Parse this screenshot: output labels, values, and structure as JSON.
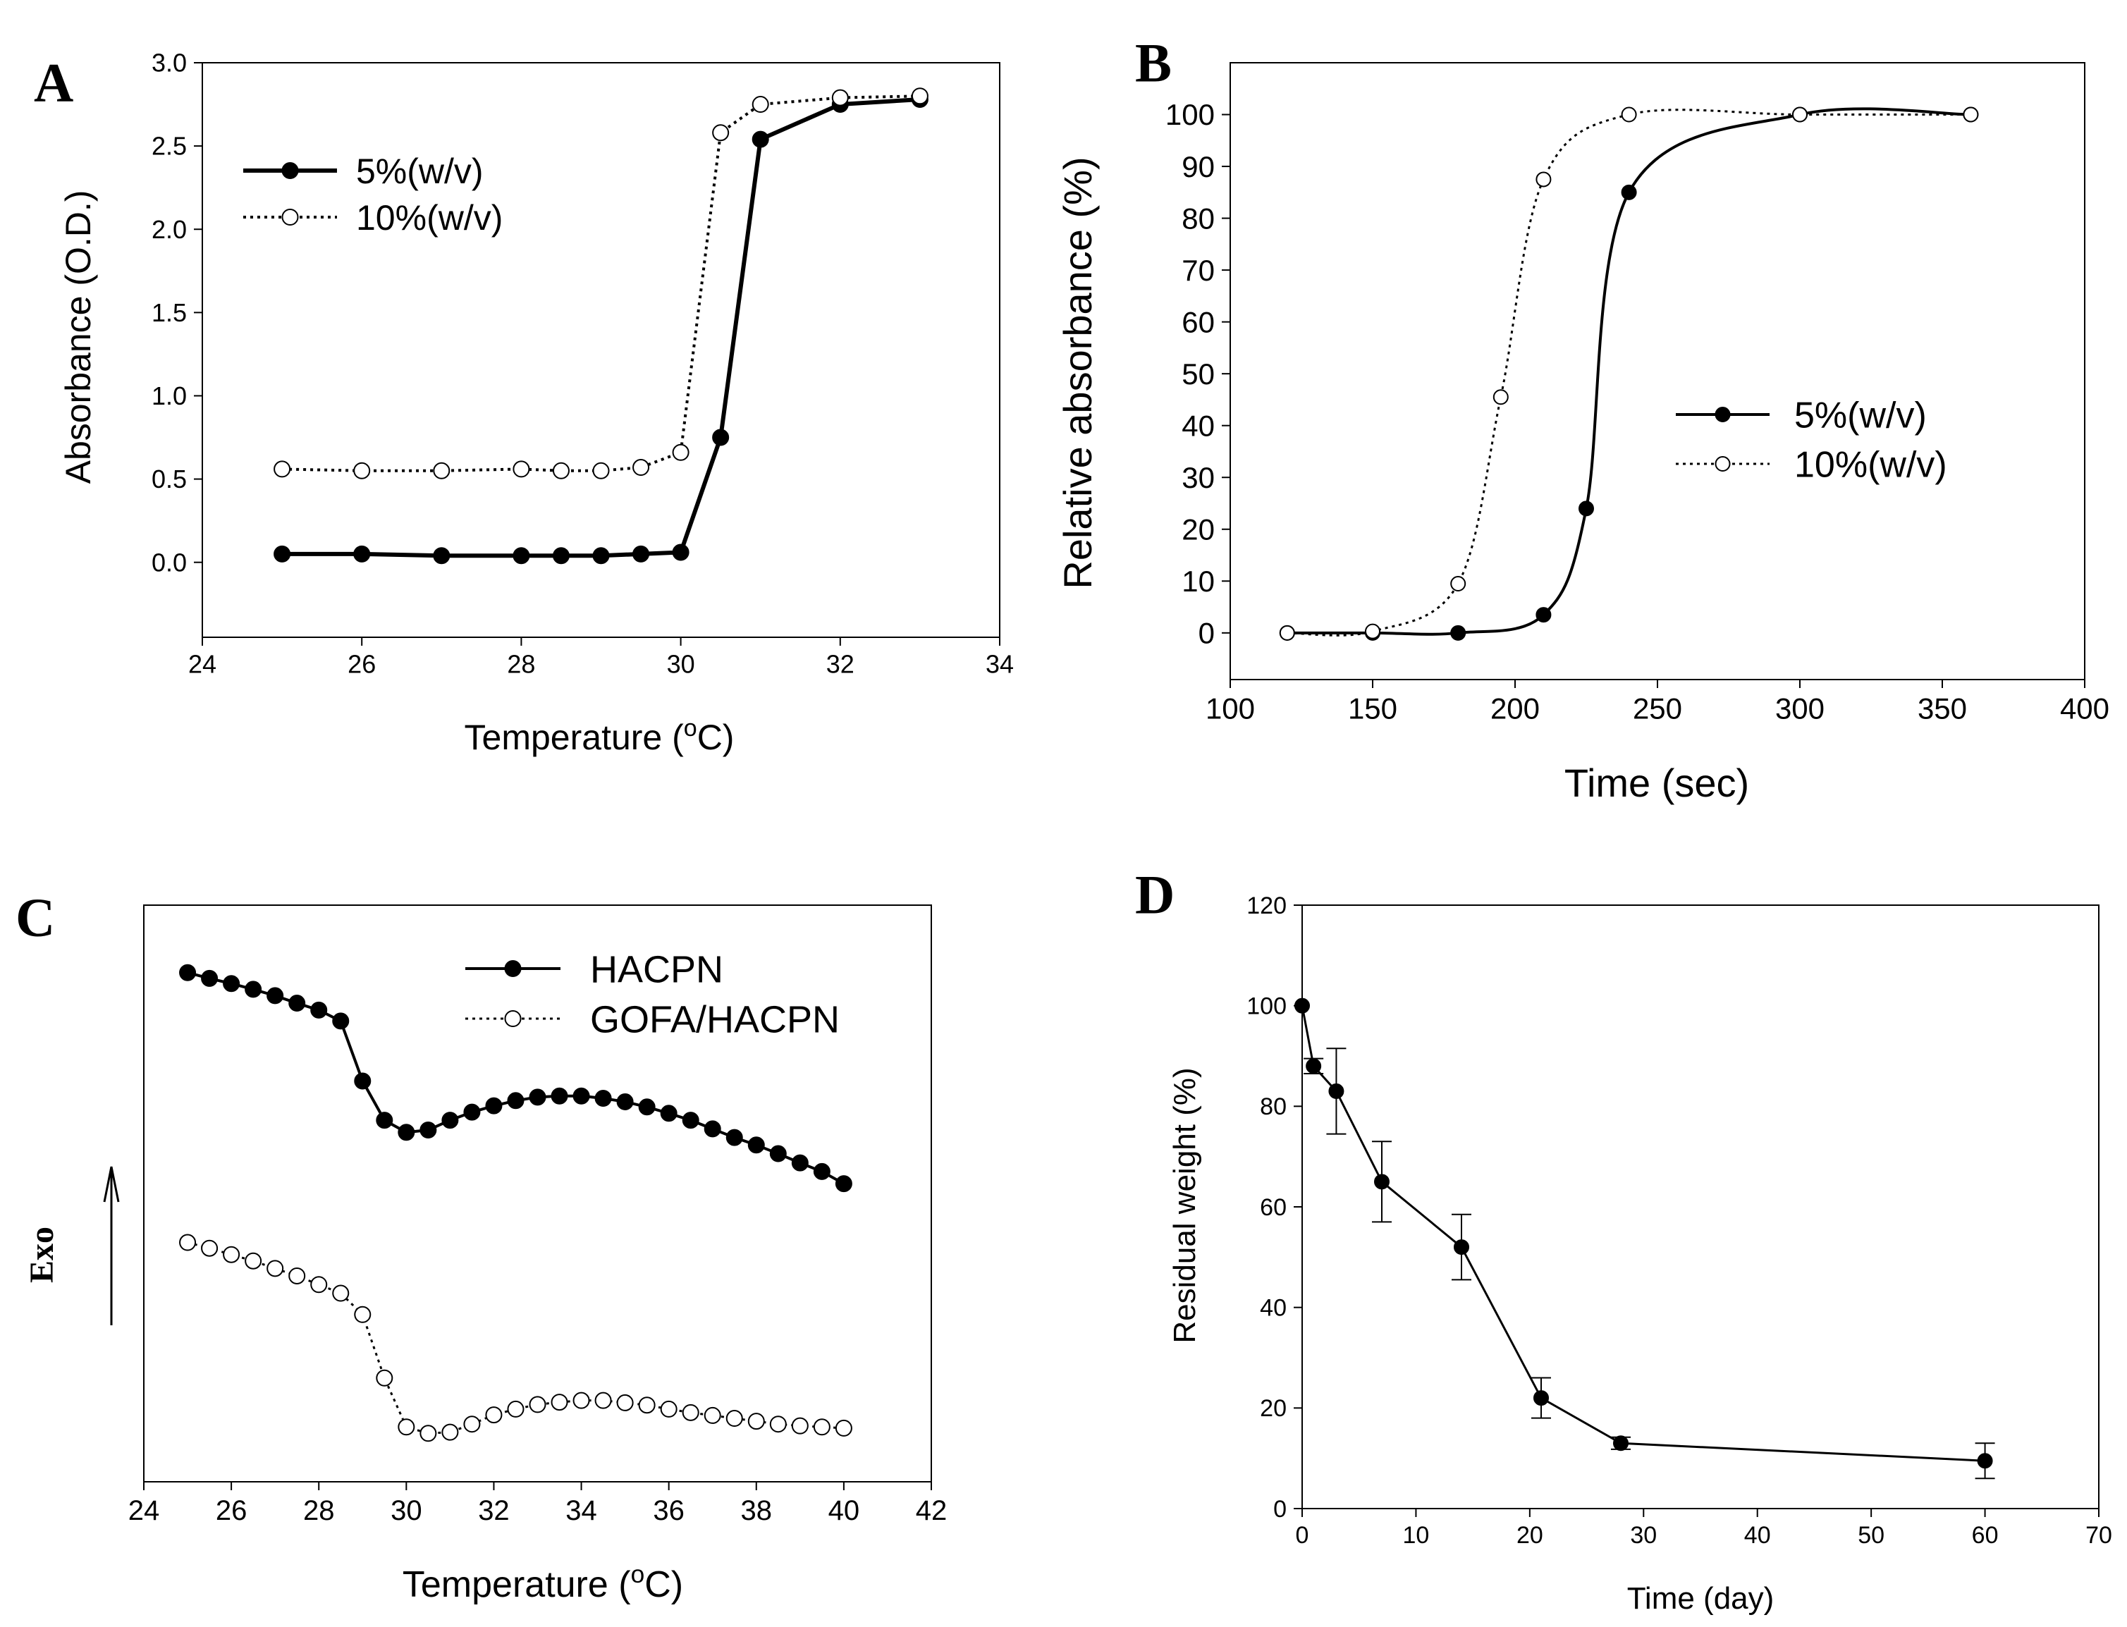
{
  "chart_data": [
    {
      "panel": "A",
      "type": "line",
      "title": "",
      "xlabel": "Temperature (",
      "xlabel_sup": "o",
      "xlabel_tail": "C)",
      "ylabel": "Absorbance (O.D.)",
      "xlim": [
        24,
        34
      ],
      "ylim": [
        -0.45,
        3.0
      ],
      "xticks": [
        "24",
        "26",
        "28",
        "30",
        "32",
        "34"
      ],
      "yticks": [
        "0.0",
        "0.5",
        "1.0",
        "1.5",
        "2.0",
        "2.5",
        "3.0"
      ],
      "legend_position": "upper-left",
      "series": [
        {
          "name": "5%(w/v)",
          "style": "solid",
          "marker": "filled",
          "x": [
            25,
            26,
            27,
            28,
            28.5,
            29,
            29.5,
            30,
            30.5,
            31,
            32,
            33
          ],
          "y": [
            0.05,
            0.05,
            0.04,
            0.04,
            0.04,
            0.04,
            0.05,
            0.06,
            0.75,
            2.54,
            2.75,
            2.78
          ]
        },
        {
          "name": "10%(w/v)",
          "style": "dotted",
          "marker": "open",
          "x": [
            25,
            26,
            27,
            28,
            28.5,
            29,
            29.5,
            30,
            30.5,
            31,
            32,
            33
          ],
          "y": [
            0.56,
            0.55,
            0.55,
            0.56,
            0.55,
            0.55,
            0.57,
            0.66,
            2.58,
            2.75,
            2.79,
            2.8
          ]
        }
      ]
    },
    {
      "panel": "B",
      "type": "line",
      "title": "",
      "xlabel": "Time (sec)",
      "ylabel": "Relative absorbance (%)",
      "xlim": [
        100,
        400
      ],
      "ylim": [
        -9,
        110
      ],
      "xticks": [
        "100",
        "150",
        "200",
        "250",
        "300",
        "350",
        "400"
      ],
      "yticks": [
        "0",
        "10",
        "20",
        "30",
        "40",
        "50",
        "60",
        "70",
        "80",
        "90",
        "100"
      ],
      "legend_position": "center-right",
      "series": [
        {
          "name": "5%(w/v)",
          "style": "solid",
          "marker": "filled",
          "x": [
            120,
            150,
            180,
            210,
            225,
            240,
            300,
            360
          ],
          "y": [
            0,
            0,
            0,
            3.5,
            24,
            85,
            100,
            100
          ]
        },
        {
          "name": "10%(w/v)",
          "style": "dotted",
          "marker": "open",
          "x": [
            120,
            150,
            180,
            195,
            210,
            240,
            300,
            360
          ],
          "y": [
            0,
            0.3,
            9.5,
            45.5,
            87.5,
            100,
            100,
            100
          ]
        }
      ]
    },
    {
      "panel": "C",
      "type": "line",
      "title": "",
      "xlabel": "Temperature (",
      "xlabel_sup": "o",
      "xlabel_tail": "C)",
      "ylabel": "Exo",
      "xlim": [
        24,
        42
      ],
      "ylim": [
        0,
        100
      ],
      "y_axis_unlabeled": true,
      "xticks": [
        "24",
        "26",
        "28",
        "30",
        "32",
        "34",
        "36",
        "38",
        "40",
        "42"
      ],
      "legend_position": "top-right",
      "series": [
        {
          "name": "HACPN",
          "style": "solid",
          "marker": "filled",
          "x": [
            25,
            25.5,
            26,
            26.5,
            27,
            27.5,
            28,
            28.5,
            29,
            29.5,
            30,
            30.5,
            31,
            31.5,
            32,
            32.5,
            33,
            33.5,
            34,
            34.5,
            35,
            35.5,
            36,
            36.5,
            37,
            37.5,
            38,
            38.5,
            39,
            39.5,
            40
          ],
          "y": [
            88.3,
            87.3,
            86.4,
            85.4,
            84.3,
            83.0,
            81.8,
            79.9,
            69.5,
            62.7,
            60.6,
            61.0,
            62.7,
            64.1,
            65.2,
            66.1,
            66.7,
            66.9,
            66.9,
            66.5,
            65.9,
            65.0,
            63.9,
            62.7,
            61.2,
            59.7,
            58.4,
            56.9,
            55.3,
            53.8,
            51.7
          ]
        },
        {
          "name": "GOFA/HACPN",
          "style": "dotted",
          "marker": "open",
          "x": [
            25,
            25.5,
            26,
            26.5,
            27,
            27.5,
            28,
            28.5,
            29,
            29.5,
            30,
            30.5,
            31,
            31.5,
            32,
            32.5,
            33,
            33.5,
            34,
            34.5,
            35,
            35.5,
            36,
            36.5,
            37,
            37.5,
            38,
            38.5,
            39,
            39.5,
            40
          ],
          "y": [
            41.5,
            40.5,
            39.4,
            38.3,
            37.0,
            35.7,
            34.2,
            32.7,
            29.0,
            18.0,
            9.5,
            8.4,
            8.6,
            10.0,
            11.6,
            12.6,
            13.4,
            13.8,
            14.1,
            14.1,
            13.7,
            13.3,
            12.6,
            12.0,
            11.5,
            11.0,
            10.5,
            10.0,
            9.7,
            9.5,
            9.3
          ]
        }
      ]
    },
    {
      "panel": "D",
      "type": "line",
      "title": "",
      "xlabel": "Time (day)",
      "ylabel": "Residual weight (%)",
      "xlim": [
        0,
        70
      ],
      "ylim": [
        0,
        120
      ],
      "xticks": [
        "0",
        "10",
        "20",
        "30",
        "40",
        "50",
        "60",
        "70"
      ],
      "yticks": [
        "0",
        "20",
        "40",
        "60",
        "80",
        "100",
        "120"
      ],
      "legend_position": "none",
      "series": [
        {
          "name": "Residual weight",
          "style": "solid",
          "marker": "filled",
          "x": [
            0,
            1,
            3,
            7,
            14,
            21,
            28,
            60
          ],
          "y": [
            100,
            88,
            83,
            65,
            52,
            22,
            13,
            9.5
          ],
          "error": [
            0,
            1.5,
            8.5,
            8,
            6.5,
            4,
            1.2,
            3.5
          ]
        }
      ]
    }
  ]
}
